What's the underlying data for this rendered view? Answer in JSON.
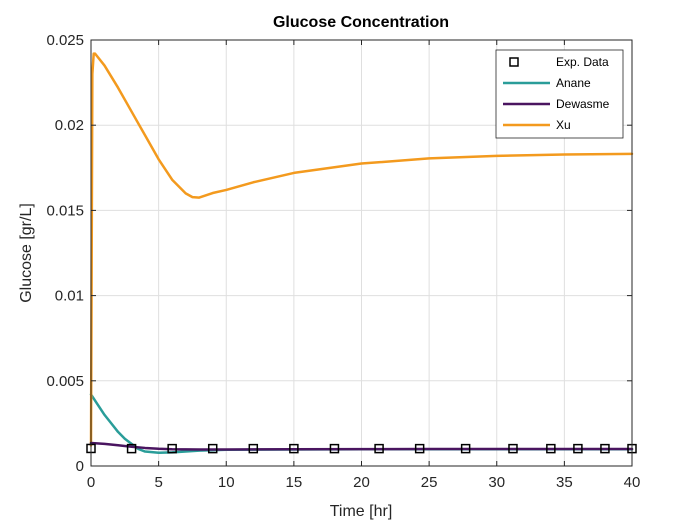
{
  "chart_data": {
    "type": "line",
    "title": "Glucose Concentration",
    "xlabel": "Time [hr]",
    "ylabel": "Glucose [gr/L]",
    "xlim": [
      0,
      40
    ],
    "ylim": [
      0,
      0.025
    ],
    "xticks": [
      "0",
      "5",
      "10",
      "15",
      "20",
      "25",
      "30",
      "35",
      "40"
    ],
    "yticks": [
      "0",
      "0.005",
      "0.01",
      "0.015",
      "0.02",
      "0.025"
    ],
    "grid": true,
    "legend_position": "top-right",
    "exp_data": {
      "name": "Exp. Data",
      "marker": "square",
      "x": [
        0,
        3,
        6,
        9,
        12,
        15,
        18,
        21.3,
        24.3,
        27.7,
        31.2,
        34,
        36,
        38,
        40
      ],
      "y": [
        0.00103,
        0.00102,
        0.00102,
        0.00102,
        0.00102,
        0.00102,
        0.00102,
        0.00102,
        0.00102,
        0.00102,
        0.00102,
        0.00102,
        0.00102,
        0.00102,
        0.00102
      ]
    },
    "series": [
      {
        "name": "Anane",
        "color": "#2a9d99",
        "x": [
          0,
          0.5,
          1,
          1.5,
          2,
          2.5,
          3,
          3.5,
          4,
          5,
          6,
          7,
          8,
          10,
          15,
          20,
          25,
          30,
          35,
          40
        ],
        "y": [
          0.0042,
          0.0036,
          0.003,
          0.0025,
          0.002,
          0.0016,
          0.0013,
          0.001,
          0.00085,
          0.00078,
          0.0008,
          0.00085,
          0.0009,
          0.00095,
          0.00097,
          0.00098,
          0.00098,
          0.00098,
          0.00098,
          0.00098
        ]
      },
      {
        "name": "Dewasme",
        "color": "#4a1560",
        "x": [
          0,
          1,
          2,
          3,
          4,
          5,
          6,
          8,
          10,
          15,
          20,
          25,
          30,
          35,
          40
        ],
        "y": [
          0.00135,
          0.0013,
          0.00122,
          0.00113,
          0.00106,
          0.00101,
          0.00098,
          0.00097,
          0.00097,
          0.00098,
          0.00099,
          0.001,
          0.001,
          0.001,
          0.001
        ]
      },
      {
        "name": "Xu",
        "color": "#f39a1e",
        "x": [
          0,
          0.1,
          0.2,
          0.3,
          1,
          2,
          3,
          4,
          5,
          6,
          7,
          7.5,
          8,
          9,
          10,
          12,
          15,
          20,
          25,
          30,
          35,
          40
        ],
        "y": [
          0.0012,
          0.023,
          0.0242,
          0.0242,
          0.0235,
          0.0222,
          0.0208,
          0.0194,
          0.018,
          0.0168,
          0.016,
          0.01578,
          0.01575,
          0.01602,
          0.0162,
          0.01665,
          0.0172,
          0.01775,
          0.01805,
          0.0182,
          0.01828,
          0.01832
        ]
      }
    ]
  }
}
